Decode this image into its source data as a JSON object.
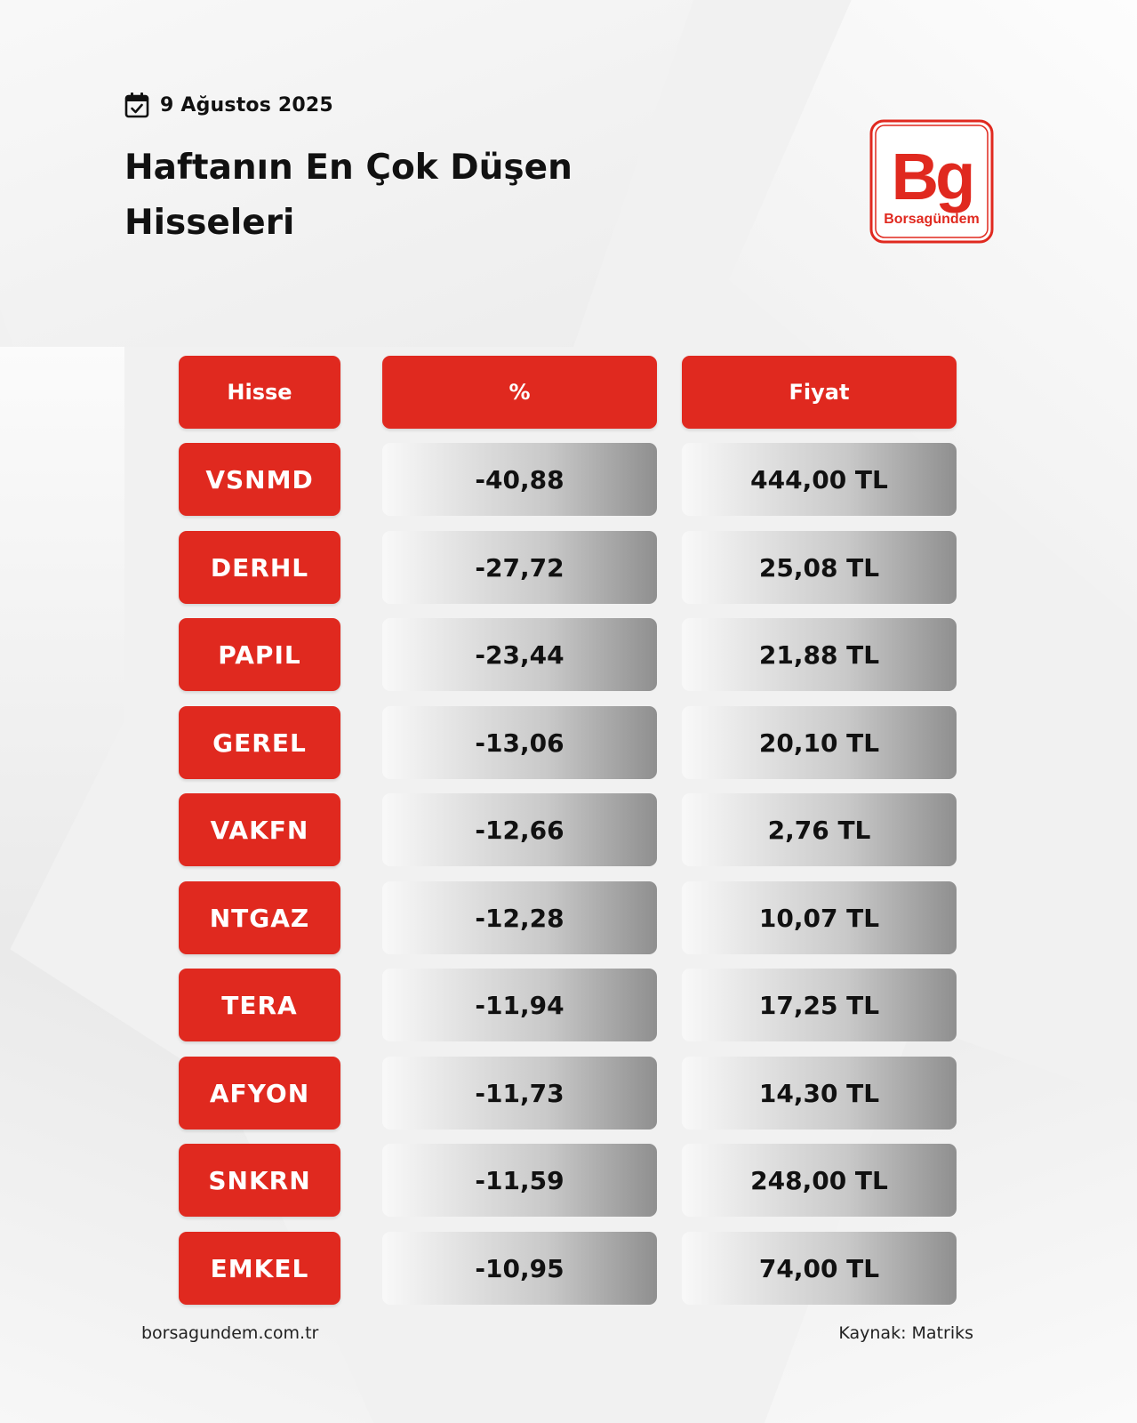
{
  "date": "9 Ağustos 2025",
  "title": "Haftanın En Çok Düşen Hisseleri",
  "logo": {
    "mark": "Bg",
    "name": "Borsagündem",
    "color": "#e0291f"
  },
  "table": {
    "headers": [
      "Hisse",
      "%",
      "Fiyat"
    ],
    "rows": [
      {
        "symbol": "VSNMD",
        "change": "-40,88",
        "price": "444,00 TL"
      },
      {
        "symbol": "DERHL",
        "change": "-27,72",
        "price": "25,08 TL"
      },
      {
        "symbol": "PAPIL",
        "change": "-23,44",
        "price": "21,88 TL"
      },
      {
        "symbol": "GEREL",
        "change": "-13,06",
        "price": "20,10 TL"
      },
      {
        "symbol": "VAKFN",
        "change": "-12,66",
        "price": "2,76 TL"
      },
      {
        "symbol": "NTGAZ",
        "change": "-12,28",
        "price": "10,07 TL"
      },
      {
        "symbol": "TERA",
        "change": "-11,94",
        "price": "17,25 TL"
      },
      {
        "symbol": "AFYON",
        "change": "-11,73",
        "price": "14,30 TL"
      },
      {
        "symbol": "SNKRN",
        "change": "-11,59",
        "price": "248,00 TL"
      },
      {
        "symbol": "EMKEL",
        "change": "-10,95",
        "price": "74,00 TL"
      }
    ]
  },
  "footer": {
    "website": "borsagundem.com.tr",
    "source": "Kaynak: Matriks"
  },
  "colors": {
    "accent": "#e0291f",
    "text": "#111111"
  }
}
